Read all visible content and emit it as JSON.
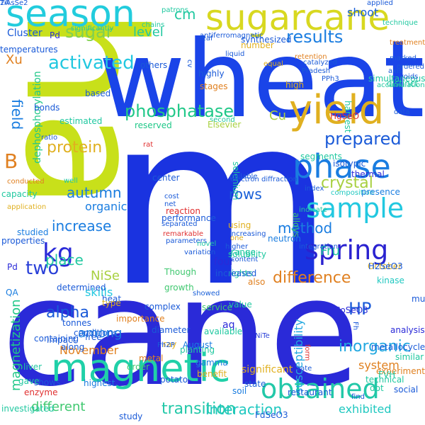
{
  "cloud": {
    "background": "#ffffff",
    "words": [
      {
        "text": "m",
        "color": "#1a33e0"
      },
      {
        "text": "cane",
        "color": "#2a2ad8"
      },
      {
        "text": "ha",
        "color": "#c8e01a"
      },
      {
        "text": "wheat",
        "color": "#1a44e8"
      },
      {
        "text": "season",
        "color": "#22ccdd"
      },
      {
        "text": "sugarcane",
        "color": "#d8d820"
      },
      {
        "text": "yield",
        "color": "#e0b020"
      },
      {
        "text": "phase",
        "color": "#1a7de0"
      },
      {
        "text": "sample",
        "color": "#22c8e0"
      },
      {
        "text": "spring",
        "color": "#2a22d0"
      },
      {
        "text": "magnetic",
        "color": "#20d0a8"
      },
      {
        "text": "obtained",
        "color": "#22c8a8"
      },
      {
        "text": "kg",
        "color": "#2a2ad8"
      },
      {
        "text": "results",
        "color": "#1a7de0"
      },
      {
        "text": "phosphatase",
        "color": "#20c888"
      },
      {
        "text": "activated",
        "color": "#22c8e0"
      },
      {
        "text": "sugar",
        "color": "#80d050"
      },
      {
        "text": "shoot",
        "color": "#1a60d8"
      },
      {
        "text": "level",
        "color": "#20c8a0"
      },
      {
        "text": "protein",
        "color": "#e0b020"
      },
      {
        "text": "autumn",
        "color": "#1a7de0"
      },
      {
        "text": "prepared",
        "color": "#1a5ad8"
      },
      {
        "text": "field",
        "color": "#1a7de0"
      },
      {
        "text": "B",
        "color": "#e08020"
      },
      {
        "text": "Xu",
        "color": "#e08020"
      },
      {
        "text": "cm",
        "color": "#20c8a0"
      },
      {
        "text": "crystal",
        "color": "#a8d040"
      },
      {
        "text": "method",
        "color": "#1a7de0"
      },
      {
        "text": "increase",
        "color": "#1a7de0"
      },
      {
        "text": "two",
        "color": "#2a40d8"
      },
      {
        "text": "difference",
        "color": "#e08020"
      },
      {
        "text": "inorganic",
        "color": "#22a8e0"
      },
      {
        "text": "HP",
        "color": "#1a5ad8"
      },
      {
        "text": "alpha",
        "color": "#1a5ad8"
      },
      {
        "text": "Fru",
        "color": "#20c8a0"
      },
      {
        "text": "Cu",
        "color": "#a8d040"
      },
      {
        "text": "place",
        "color": "#20c8a0"
      },
      {
        "text": "NiSe",
        "color": "#a8d040"
      },
      {
        "text": "skills",
        "color": "#22c8e0"
      },
      {
        "text": "among",
        "color": "#1a7de0"
      },
      {
        "text": "November",
        "color": "#e08020"
      },
      {
        "text": "transition",
        "color": "#22c8a8"
      },
      {
        "text": "different",
        "color": "#40c870"
      },
      {
        "text": "rows",
        "color": "#1a60d8"
      },
      {
        "text": "organic",
        "color": "#1a7de0"
      },
      {
        "text": "magnetization",
        "color": "#20c888"
      },
      {
        "text": "dephosphorylation",
        "color": "#20c888"
      },
      {
        "text": "susceptibility",
        "color": "#22a8e0"
      },
      {
        "text": "interaction",
        "color": "#20c8c0"
      },
      {
        "text": "exhibited",
        "color": "#20c8c0"
      },
      {
        "text": "Cluster",
        "color": "#1a5ad8"
      },
      {
        "text": "Pd",
        "color": "#2a2ad8"
      },
      {
        "text": "significantly",
        "color": "#20c8a0"
      },
      {
        "text": "patrons",
        "color": "#20c8a0"
      },
      {
        "text": "technique",
        "color": "#20c8a0"
      },
      {
        "text": "liquid",
        "color": "#1a5ad8"
      },
      {
        "text": "retention",
        "color": "#e08020"
      },
      {
        "text": "reserved",
        "color": "#20c888"
      },
      {
        "text": "second",
        "color": "#20c8a0"
      },
      {
        "text": "Elsevier",
        "color": "#a8d040"
      },
      {
        "text": "high",
        "color": "#e0b020"
      },
      {
        "text": "harvest",
        "color": "#20c8a0"
      },
      {
        "text": "ratio",
        "color": "#1a5ad8"
      },
      {
        "text": "composition",
        "color": "#20c8c0"
      },
      {
        "text": "indicate",
        "color": "#20c8a0"
      },
      {
        "text": "higher",
        "color": "#1a5ad8"
      },
      {
        "text": "using",
        "color": "#e0b020"
      },
      {
        "text": "one",
        "color": "#e0b020"
      },
      {
        "text": "range",
        "color": "#20c8a0"
      },
      {
        "text": "studied",
        "color": "#1a7de0"
      },
      {
        "text": "properties",
        "color": "#1a5ad8"
      },
      {
        "text": "growth",
        "color": "#40c870"
      },
      {
        "text": "Though",
        "color": "#40c870"
      },
      {
        "text": "rights",
        "color": "#20c8a0"
      },
      {
        "text": "October",
        "color": "#e0b020"
      },
      {
        "text": "heat",
        "color": "#1a5ad8"
      },
      {
        "text": "type",
        "color": "#e0b020"
      },
      {
        "text": "importance",
        "color": "#e08020"
      },
      {
        "text": "showed",
        "color": "#1a60d8"
      },
      {
        "text": "service",
        "color": "#40c870"
      },
      {
        "text": "four",
        "color": "#2a2ad8"
      },
      {
        "text": "value",
        "color": "#20c8a0"
      },
      {
        "text": "CoSeO3",
        "color": "#2a2ad8"
      },
      {
        "text": "kinase",
        "color": "#20c8c0"
      },
      {
        "text": "mu",
        "color": "#1a5ad8"
      },
      {
        "text": "aq",
        "color": "#2a2ad8"
      },
      {
        "text": "NiTe",
        "color": "#2a40d8"
      },
      {
        "text": "metal",
        "color": "#e08020"
      },
      {
        "text": "ray",
        "color": "#e0b020"
      },
      {
        "text": "liver",
        "color": "#20c8a0"
      },
      {
        "text": "highest",
        "color": "#1a7de0"
      },
      {
        "text": "order",
        "color": "#40c870"
      },
      {
        "text": "state",
        "color": "#1a60d8"
      },
      {
        "text": "significant",
        "color": "#e0b020"
      },
      {
        "text": "restaurant",
        "color": "#1a5ad8"
      },
      {
        "text": "system",
        "color": "#e08020"
      },
      {
        "text": "soil",
        "color": "#1a7de0"
      },
      {
        "text": "dot",
        "color": "#20c8a0"
      },
      {
        "text": "enzyme",
        "color": "#e03030"
      },
      {
        "text": "shows",
        "color": "#1a5ad8"
      },
      {
        "text": "gave",
        "color": "#20c8a0"
      },
      {
        "text": "Pd",
        "color": "#2a2ad8"
      },
      {
        "text": "QA",
        "color": "#1a7de0"
      },
      {
        "text": "increased",
        "color": "#1a5ad8"
      },
      {
        "text": "also",
        "color": "#e08020"
      },
      {
        "text": "neutron",
        "color": "#1a7de0"
      },
      {
        "text": "alloys",
        "color": "#40c870"
      },
      {
        "text": "selenium",
        "color": "#20c8a0"
      },
      {
        "text": "millable",
        "color": "#1a5ad8"
      },
      {
        "text": "well",
        "color": "#20c8a0"
      },
      {
        "text": "center",
        "color": "#1a5ad8"
      },
      {
        "text": "electron diffraction",
        "color": "#1a5ad8"
      },
      {
        "text": "thermal",
        "color": "#2a2ad8"
      },
      {
        "text": "isotypic",
        "color": "#1a5ad8"
      },
      {
        "text": "simultaneous",
        "color": "#20c8a0"
      },
      {
        "text": "distinct",
        "color": "#20c8a0"
      },
      {
        "text": "presence",
        "color": "#1a7de0"
      },
      {
        "text": "segments",
        "color": "#20c8a0"
      },
      {
        "text": "metallocycle",
        "color": "#1a5ad8"
      },
      {
        "text": "H2SeO3",
        "color": "#1a5ad8"
      },
      {
        "text": "analysis",
        "color": "#2a2ad8"
      },
      {
        "text": "similar",
        "color": "#20c8a0"
      },
      {
        "text": "social",
        "color": "#1a5ad8"
      },
      {
        "text": "experiment",
        "color": "#e08020"
      },
      {
        "text": "technical",
        "color": "#20c8a0"
      },
      {
        "text": "potato",
        "color": "#1a5ad8"
      },
      {
        "text": "benefit",
        "color": "#e0b020"
      },
      {
        "text": "gamma",
        "color": "#1a7de0"
      },
      {
        "text": "planting",
        "color": "#20c8a0"
      },
      {
        "text": "FdSeO3",
        "color": "#1a5ad8"
      },
      {
        "text": "August",
        "color": "#1a7de0"
      },
      {
        "text": "Ph2P",
        "color": "#1a5ad8"
      },
      {
        "text": "diameter",
        "color": "#1a5ad8"
      },
      {
        "text": "complex",
        "color": "#1a5ad8"
      },
      {
        "text": "capacity",
        "color": "#20c8a0"
      },
      {
        "text": "application",
        "color": "#e0b020"
      },
      {
        "text": "conducted",
        "color": "#e08020"
      },
      {
        "text": "cost",
        "color": "#1a5ad8"
      },
      {
        "text": "net",
        "color": "#1a5ad8"
      },
      {
        "text": "performance",
        "color": "#1a5ad8"
      },
      {
        "text": "reaction",
        "color": "#e03030"
      },
      {
        "text": "separated",
        "color": "#1a5ad8"
      },
      {
        "text": "parameters",
        "color": "#1a5ad8"
      },
      {
        "text": "remarkable",
        "color": "#e03030"
      },
      {
        "text": "variation",
        "color": "#1a5ad8"
      },
      {
        "text": "novel",
        "color": "#20c8a0"
      },
      {
        "text": "content",
        "color": "#1a5ad8"
      },
      {
        "text": "solubility",
        "color": "#20c8a0"
      },
      {
        "text": "increasing",
        "color": "#1a5ad8"
      },
      {
        "text": "integration",
        "color": "#1a5ad8"
      },
      {
        "text": "index",
        "color": "#1a5ad8"
      },
      {
        "text": "along",
        "color": "#1a5ad8"
      },
      {
        "text": "conditions",
        "color": "#1a5ad8"
      },
      {
        "text": "containing",
        "color": "#1a5ad8"
      },
      {
        "text": "determined",
        "color": "#1a5ad8"
      },
      {
        "text": "impact",
        "color": "#1a5ad8"
      },
      {
        "text": "investigated",
        "color": "#20c8a0"
      },
      {
        "text": "study",
        "color": "#1a5ad8"
      },
      {
        "text": "available",
        "color": "#20c8a0"
      },
      {
        "text": "free",
        "color": "#1a5ad8"
      },
      {
        "text": "tonnes",
        "color": "#1a5ad8"
      },
      {
        "text": "HgSeO",
        "color": "#e03030"
      },
      {
        "text": "accumulation",
        "color": "#20c8a0"
      },
      {
        "text": "data",
        "color": "#1a5ad8"
      },
      {
        "text": "bonds",
        "color": "#1a5ad8"
      },
      {
        "text": "estimated",
        "color": "#20c8a0"
      },
      {
        "text": "based",
        "color": "#1a5ad8"
      },
      {
        "text": "rat",
        "color": "#e03030"
      },
      {
        "text": "chains",
        "color": "#20c8a0"
      },
      {
        "text": "temperatures",
        "color": "#1a5ad8"
      },
      {
        "text": "others",
        "color": "#1a5ad8"
      },
      {
        "text": "antiferromagnetic",
        "color": "#1a5ad8"
      },
      {
        "text": "leaf",
        "color": "#1a5ad8"
      },
      {
        "text": "synthesized",
        "color": "#1a5ad8"
      },
      {
        "text": "number",
        "color": "#e0b020"
      },
      {
        "text": "equal",
        "color": "#e0b020"
      },
      {
        "text": "highly",
        "color": "#1a5ad8"
      },
      {
        "text": "stages",
        "color": "#e08020"
      },
      {
        "text": "applied",
        "color": "#1a5ad8"
      },
      {
        "text": "marked",
        "color": "#1a5ad8"
      },
      {
        "text": "treatment",
        "color": "#e08020"
      },
      {
        "text": "ordered",
        "color": "#1a5ad8"
      },
      {
        "text": "Pradesh",
        "color": "#1a5ad8"
      },
      {
        "text": "catalyzed",
        "color": "#1a5ad8"
      },
      {
        "text": "voids",
        "color": "#1a5ad8"
      },
      {
        "text": "find",
        "color": "#1a5ad8"
      },
      {
        "text": "FVH",
        "color": "#20c8a0"
      },
      {
        "text": "rate",
        "color": "#1a5ad8"
      },
      {
        "text": "Fh",
        "color": "#1a5ad8"
      },
      {
        "text": "form",
        "color": "#e03030"
      },
      {
        "text": "PPh3",
        "color": "#1a5ad8"
      },
      {
        "text": "axis",
        "color": "#1a5ad8"
      },
      {
        "text": "cv",
        "color": "#1a5ad8"
      },
      {
        "text": "2A",
        "color": "#1a5ad8"
      },
      {
        "text": "TiAsSe2",
        "color": "#1a5ad8"
      }
    ]
  }
}
